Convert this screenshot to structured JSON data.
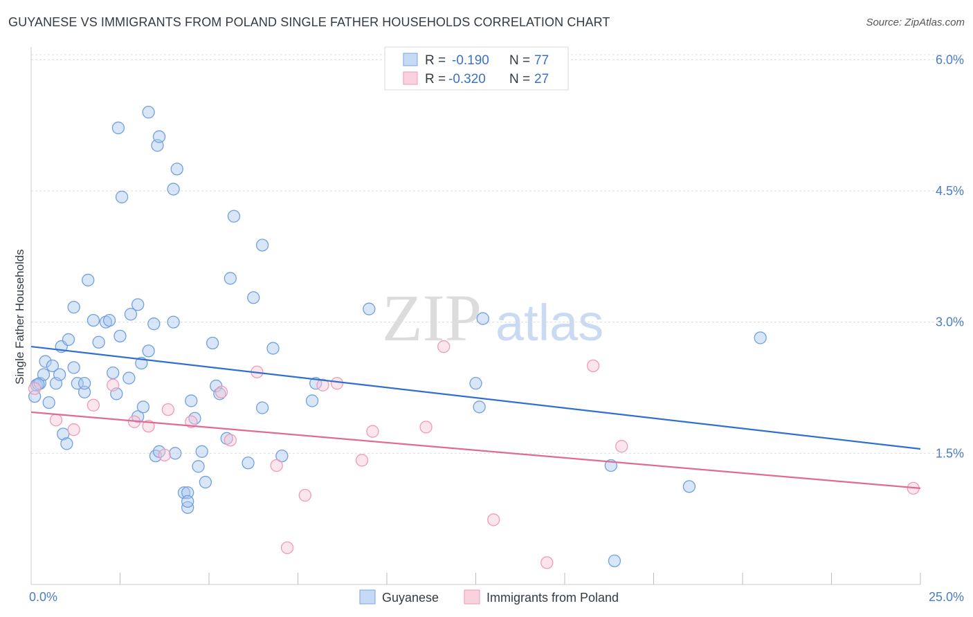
{
  "title": "GUYANESE VS IMMIGRANTS FROM POLAND SINGLE FATHER HOUSEHOLDS CORRELATION CHART",
  "source": "Source: ZipAtlas.com",
  "watermark": {
    "zip": "ZIP",
    "atlas": "atlas"
  },
  "legend": {
    "guyanese": {
      "r_label": "R =",
      "r_value": "-0.190",
      "n_label": "N =",
      "n_value": "77"
    },
    "poland": {
      "r_label": "R =",
      "r_value": "-0.320",
      "n_label": "N =",
      "n_value": "27"
    }
  },
  "bottom_legend": {
    "guyanese": "Guyanese",
    "poland": "Immigrants from Poland"
  },
  "chart_data": {
    "type": "scatter",
    "title": "GUYANESE VS IMMIGRANTS FROM POLAND SINGLE FATHER HOUSEHOLDS CORRELATION CHART",
    "xlabel": "",
    "ylabel": "Single Father Households",
    "xlim": [
      0,
      25
    ],
    "ylim": [
      0,
      6.2
    ],
    "x_tick_labels": [
      "0.0%",
      "25.0%"
    ],
    "y_ticks": [
      1.5,
      3.0,
      4.5,
      6.0
    ],
    "y_tick_labels": [
      "1.5%",
      "3.0%",
      "4.5%",
      "6.0%"
    ],
    "grid": true,
    "colors": {
      "guyanese": "#6fa0e0",
      "guyanese_line": "#2f6fd0",
      "poland": "#f09ab6",
      "poland_line": "#e06a93"
    },
    "series": [
      {
        "name": "Guyanese",
        "points": [
          [
            0.1,
            2.15
          ],
          [
            0.15,
            2.28
          ],
          [
            0.25,
            2.3
          ],
          [
            0.35,
            2.4
          ],
          [
            0.4,
            2.55
          ],
          [
            0.5,
            2.08
          ],
          [
            0.6,
            2.5
          ],
          [
            0.7,
            2.3
          ],
          [
            0.8,
            2.4
          ],
          [
            0.85,
            2.72
          ],
          [
            1.05,
            2.8
          ],
          [
            1.2,
            2.48
          ],
          [
            1.3,
            2.3
          ],
          [
            1.5,
            2.2
          ],
          [
            1.2,
            3.17
          ],
          [
            1.6,
            3.48
          ],
          [
            1.75,
            3.02
          ],
          [
            1.9,
            2.77
          ],
          [
            2.1,
            3.0
          ],
          [
            2.2,
            3.02
          ],
          [
            2.4,
            2.18
          ],
          [
            2.3,
            2.42
          ],
          [
            2.5,
            2.84
          ],
          [
            2.45,
            5.22
          ],
          [
            2.55,
            4.43
          ],
          [
            2.8,
            3.09
          ],
          [
            3.0,
            3.2
          ],
          [
            3.1,
            2.53
          ],
          [
            2.75,
            2.36
          ],
          [
            3.0,
            1.92
          ],
          [
            3.3,
            2.67
          ],
          [
            3.45,
            2.98
          ],
          [
            3.3,
            5.4
          ],
          [
            3.55,
            5.02
          ],
          [
            3.6,
            5.12
          ],
          [
            4.0,
            3.0
          ],
          [
            4.0,
            4.52
          ],
          [
            4.1,
            4.75
          ],
          [
            3.5,
            1.47
          ],
          [
            3.6,
            1.52
          ],
          [
            4.05,
            1.5
          ],
          [
            4.3,
            1.05
          ],
          [
            4.4,
            0.88
          ],
          [
            4.5,
            2.1
          ],
          [
            4.6,
            1.9
          ],
          [
            4.8,
            1.52
          ],
          [
            4.7,
            1.35
          ],
          [
            4.9,
            1.17
          ],
          [
            5.1,
            2.76
          ],
          [
            5.2,
            2.27
          ],
          [
            5.3,
            2.18
          ],
          [
            5.5,
            1.67
          ],
          [
            5.6,
            3.5
          ],
          [
            5.7,
            4.21
          ],
          [
            6.1,
            1.39
          ],
          [
            6.25,
            3.28
          ],
          [
            6.5,
            3.88
          ],
          [
            6.5,
            2.02
          ],
          [
            6.8,
            2.7
          ],
          [
            7.05,
            1.47
          ],
          [
            7.9,
            2.1
          ],
          [
            8.0,
            2.3
          ],
          [
            9.5,
            3.15
          ],
          [
            12.7,
            3.04
          ],
          [
            12.5,
            2.3
          ],
          [
            12.6,
            2.03
          ],
          [
            16.3,
            1.36
          ],
          [
            18.5,
            1.12
          ],
          [
            20.5,
            2.82
          ],
          [
            16.4,
            0.27
          ],
          [
            1.5,
            2.3
          ],
          [
            0.9,
            1.72
          ],
          [
            1.0,
            1.61
          ],
          [
            4.4,
            1.05
          ],
          [
            3.15,
            2.03
          ],
          [
            0.2,
            2.29
          ],
          [
            4.4,
            0.95
          ]
        ]
      },
      {
        "name": "Immigrants from Poland",
        "points": [
          [
            0.1,
            2.24
          ],
          [
            0.7,
            1.88
          ],
          [
            1.2,
            1.77
          ],
          [
            1.75,
            2.05
          ],
          [
            2.3,
            2.28
          ],
          [
            2.9,
            1.86
          ],
          [
            3.3,
            1.81
          ],
          [
            3.75,
            1.48
          ],
          [
            3.85,
            2.0
          ],
          [
            4.5,
            1.86
          ],
          [
            5.35,
            2.2
          ],
          [
            5.6,
            1.65
          ],
          [
            6.35,
            2.43
          ],
          [
            6.9,
            1.36
          ],
          [
            7.2,
            0.42
          ],
          [
            7.7,
            1.02
          ],
          [
            8.2,
            2.28
          ],
          [
            8.6,
            2.3
          ],
          [
            9.3,
            1.42
          ],
          [
            9.6,
            1.75
          ],
          [
            11.1,
            1.8
          ],
          [
            11.6,
            2.72
          ],
          [
            13.0,
            0.74
          ],
          [
            14.5,
            0.25
          ],
          [
            15.8,
            2.5
          ],
          [
            16.6,
            1.58
          ],
          [
            24.8,
            1.1
          ]
        ]
      }
    ],
    "trendlines": [
      {
        "series": "Guyanese",
        "x": [
          0,
          25
        ],
        "y": [
          2.72,
          1.55
        ]
      },
      {
        "series": "Immigrants from Poland",
        "x": [
          0,
          25
        ],
        "y": [
          1.97,
          1.1
        ]
      }
    ]
  }
}
